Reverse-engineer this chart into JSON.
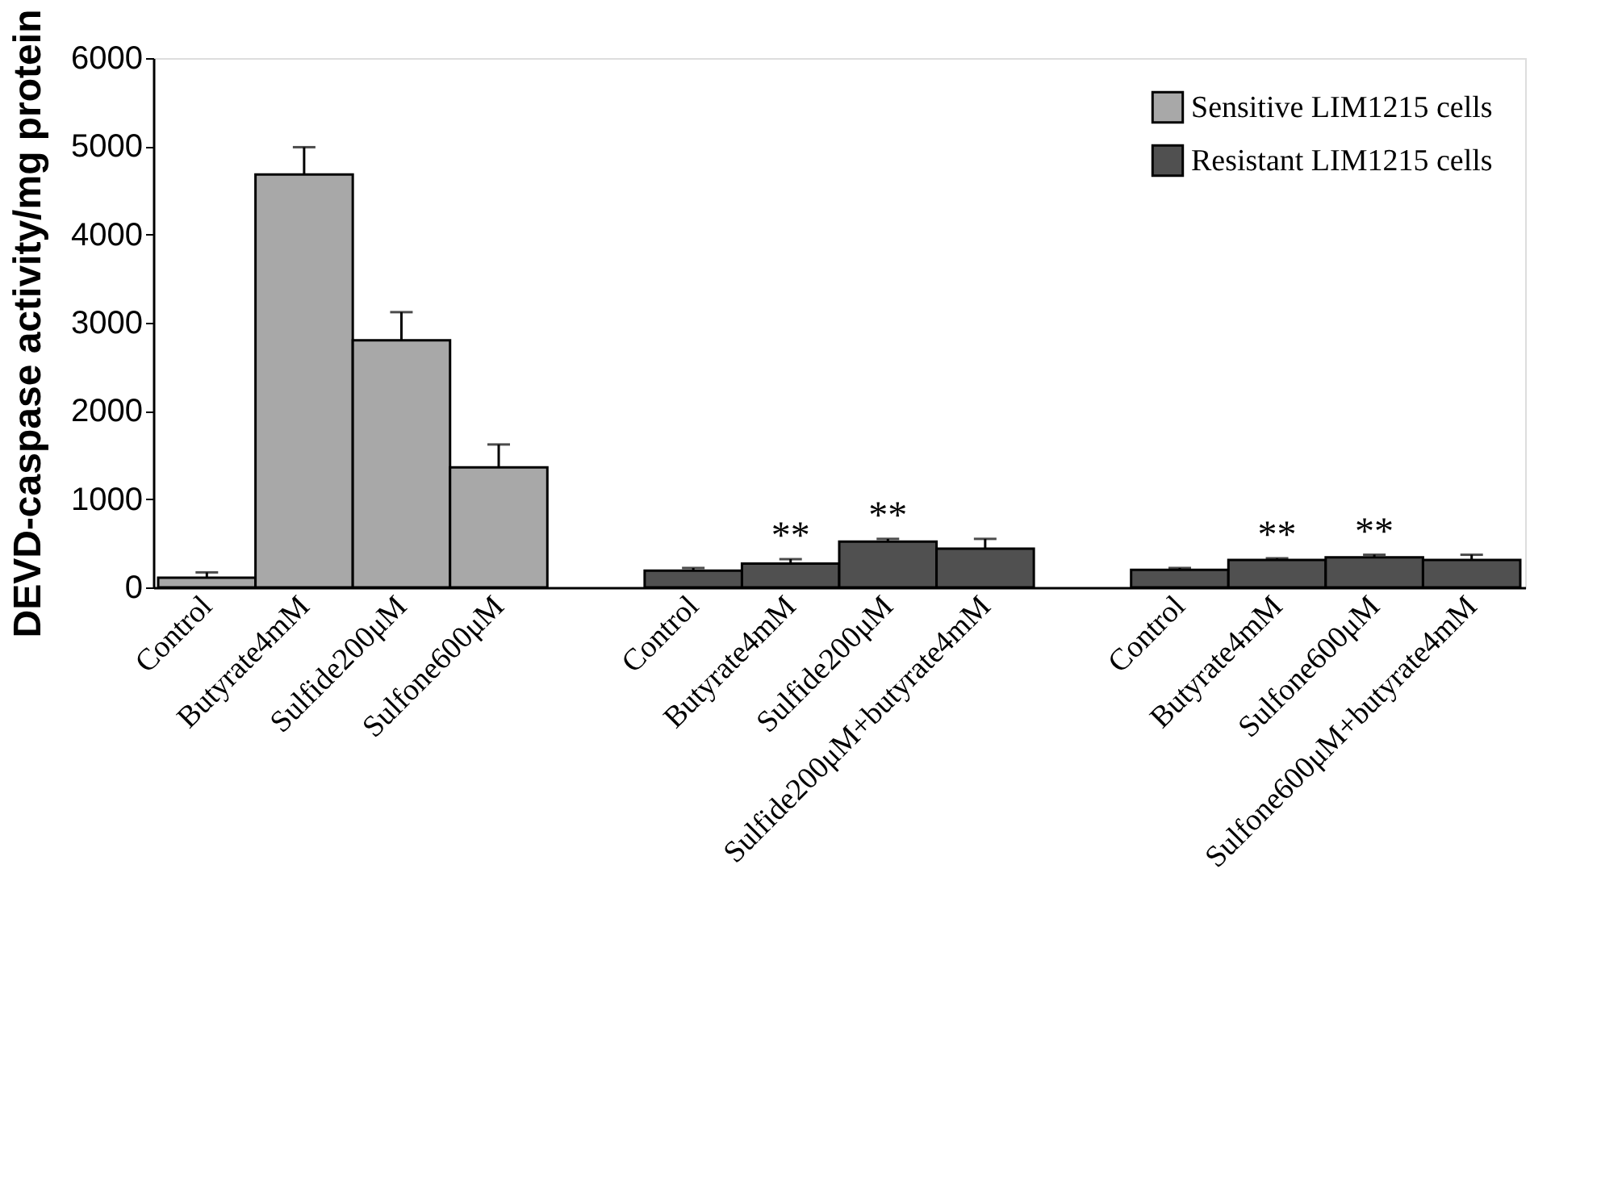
{
  "chart_data": {
    "type": "bar",
    "ylabel": "DEVD-caspase activity/mg protein",
    "categories": [
      "Control",
      "Butyrate4mM",
      "Sulfide200μM",
      "Sulfone600μM",
      null,
      "Control",
      "Butyrate4mM",
      "Sulfide200μM",
      "Sulfide200μM+butyrate4mM",
      null,
      "Control",
      "Butyrate4mM",
      "Sulfone600μM",
      "Sulfone600μM+butyrate4mM"
    ],
    "series": [
      {
        "name": "Sensitive LIM1215 cells",
        "color": "#a8a8a8",
        "values": [
          110,
          4680,
          2800,
          1360,
          null,
          null,
          null,
          null,
          null,
          null,
          null,
          null,
          null,
          null
        ],
        "errors": [
          [
            110,
            170
          ],
          [
            4680,
            4990
          ],
          [
            2800,
            3120
          ],
          [
            1360,
            1620
          ],
          null,
          null,
          null,
          null,
          null,
          null,
          null,
          null,
          null,
          null
        ]
      },
      {
        "name": "Resistant LIM1215 cells",
        "color": "#505050",
        "values": [
          null,
          null,
          null,
          null,
          null,
          190,
          270,
          520,
          440,
          null,
          200,
          310,
          340,
          310
        ],
        "errors": [
          null,
          null,
          null,
          null,
          null,
          [
            190,
            220
          ],
          [
            270,
            320
          ],
          [
            520,
            550
          ],
          [
            440,
            550
          ],
          null,
          [
            200,
            220
          ],
          [
            310,
            330
          ],
          [
            340,
            370
          ],
          [
            310,
            370
          ]
        ],
        "value_labels": [
          null,
          null,
          null,
          null,
          null,
          null,
          "**",
          "**",
          null,
          null,
          null,
          "**",
          "**",
          null
        ]
      }
    ],
    "ylim": [
      0,
      6000
    ],
    "yticks": [
      0,
      1000,
      2000,
      3000,
      4000,
      5000,
      6000
    ],
    "legend": "top right",
    "grid": false
  }
}
